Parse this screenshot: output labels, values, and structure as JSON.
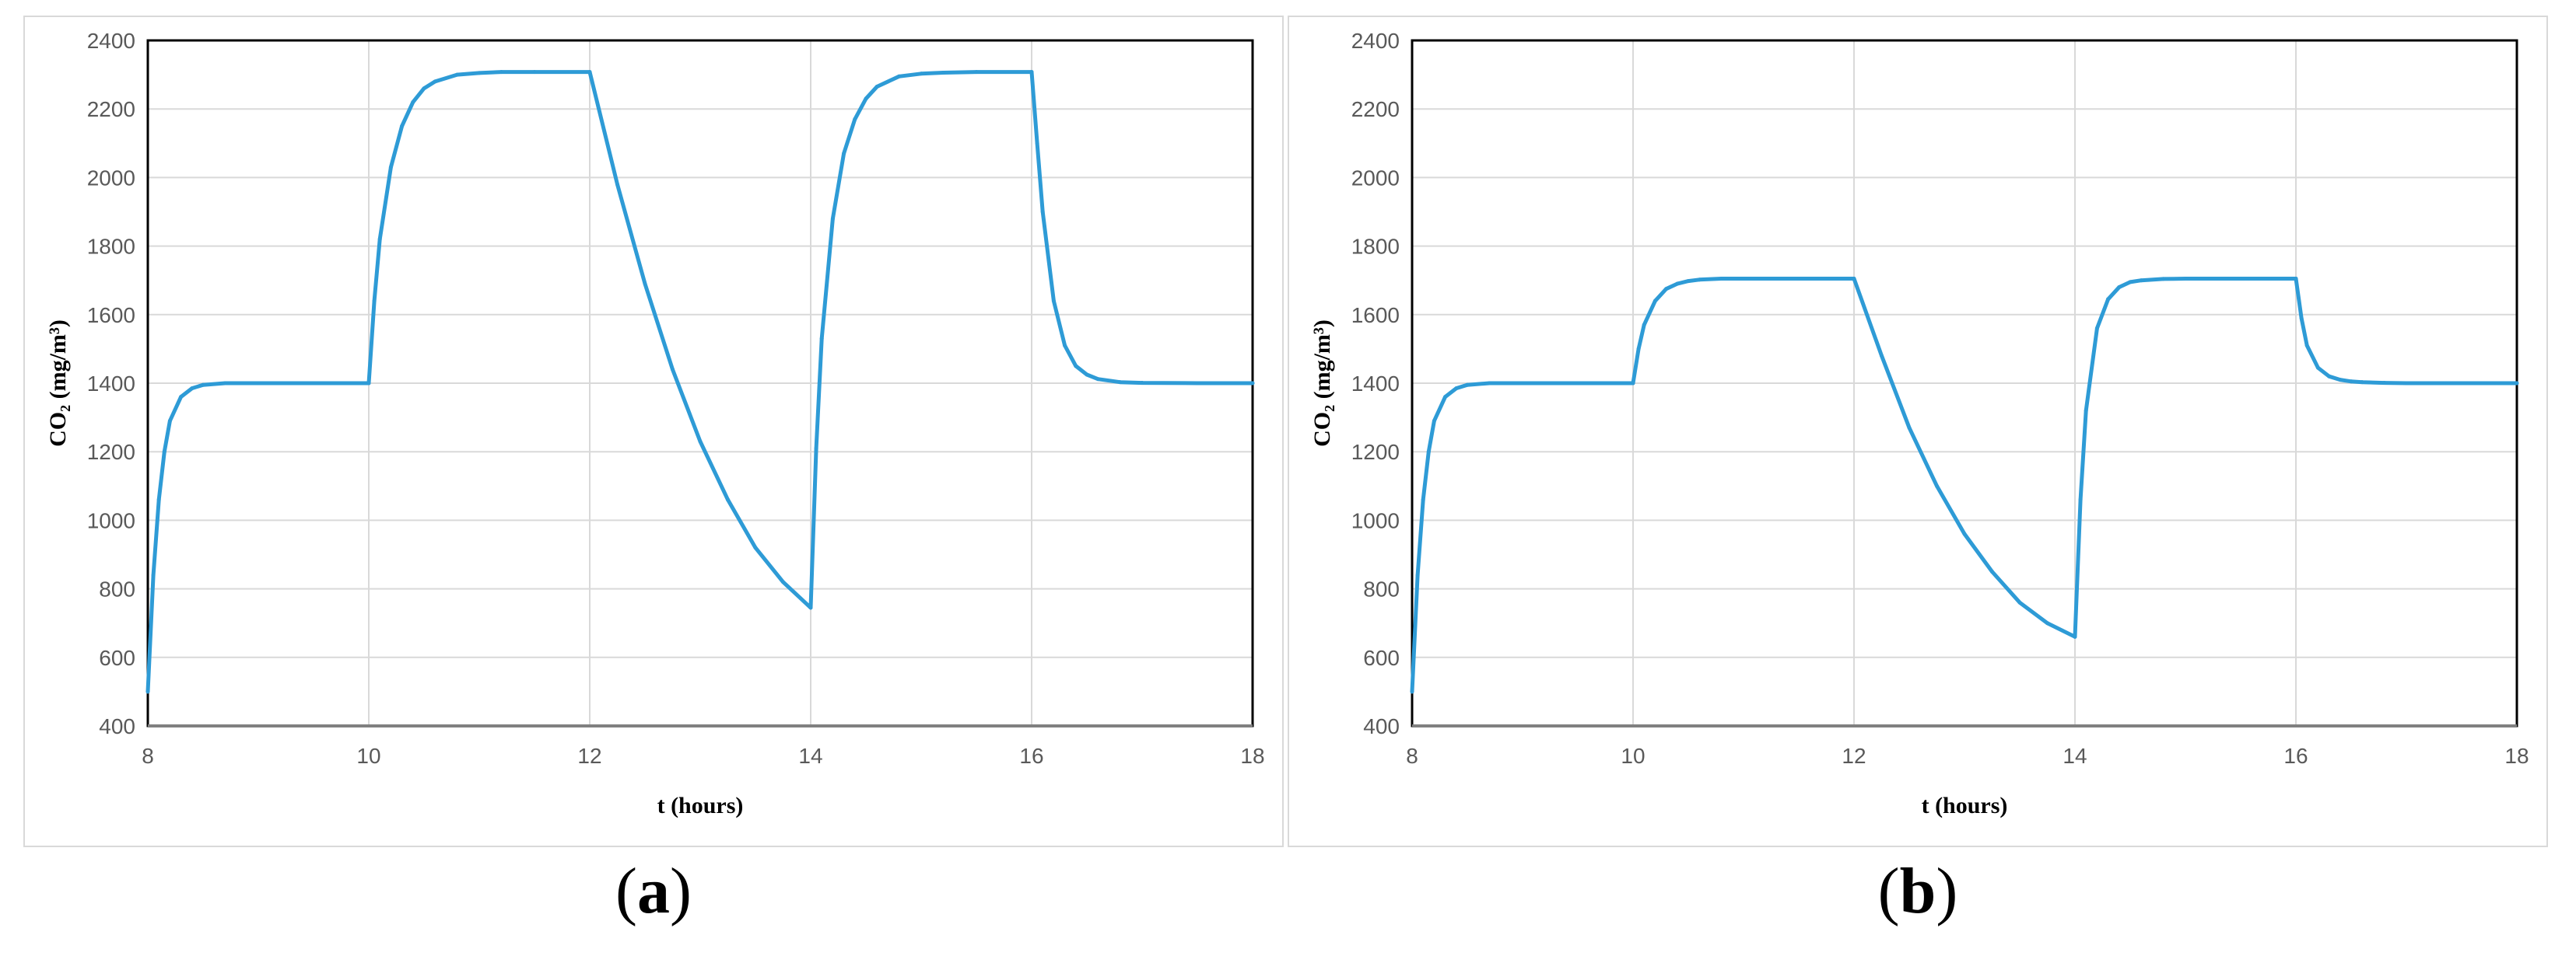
{
  "chart_data": [
    {
      "type": "line",
      "panel_label": "a",
      "xlabel": "t (hours)",
      "ylabel": "CO₂ (mg/m³)",
      "xlim": [
        8,
        18
      ],
      "ylim": [
        400,
        2400
      ],
      "xticks": [
        8,
        10,
        12,
        14,
        16,
        18
      ],
      "yticks": [
        400,
        600,
        800,
        1000,
        1200,
        1400,
        1600,
        1800,
        2000,
        2200,
        2400
      ],
      "grid": true,
      "line_color": "#2e9bd6",
      "series": [
        {
          "x": [
            8.0,
            8.05,
            8.1,
            8.15,
            8.2,
            8.3,
            8.4,
            8.5,
            8.7,
            9.0,
            10.0,
            10.05,
            10.1,
            10.2,
            10.3,
            10.4,
            10.5,
            10.6,
            10.8,
            11.0,
            11.2,
            11.5,
            12.0,
            12.25,
            12.5,
            12.75,
            13.0,
            13.25,
            13.5,
            13.75,
            14.0,
            14.05,
            14.1,
            14.2,
            14.3,
            14.4,
            14.5,
            14.6,
            14.8,
            15.0,
            15.2,
            15.5,
            16.0,
            16.05,
            16.1,
            16.2,
            16.3,
            16.4,
            16.5,
            16.6,
            16.8,
            17.0,
            17.5,
            18.0
          ],
          "y": [
            500,
            840,
            1060,
            1200,
            1290,
            1360,
            1385,
            1395,
            1400,
            1400,
            1400,
            1640,
            1820,
            2030,
            2150,
            2220,
            2260,
            2280,
            2300,
            2305,
            2308,
            2308,
            2308,
            1980,
            1690,
            1440,
            1230,
            1060,
            920,
            820,
            745,
            1210,
            1530,
            1880,
            2070,
            2170,
            2230,
            2265,
            2295,
            2303,
            2306,
            2308,
            2308,
            2100,
            1900,
            1640,
            1510,
            1450,
            1425,
            1412,
            1403,
            1401,
            1400,
            1400
          ]
        }
      ]
    },
    {
      "type": "line",
      "panel_label": "b",
      "xlabel": "t (hours)",
      "ylabel": "CO₂ (mg/m³)",
      "xlim": [
        8,
        18
      ],
      "ylim": [
        400,
        2400
      ],
      "xticks": [
        8,
        10,
        12,
        14,
        16,
        18
      ],
      "yticks": [
        400,
        600,
        800,
        1000,
        1200,
        1400,
        1600,
        1800,
        2000,
        2200,
        2400
      ],
      "grid": true,
      "line_color": "#2e9bd6",
      "series": [
        {
          "x": [
            8.0,
            8.05,
            8.1,
            8.15,
            8.2,
            8.3,
            8.4,
            8.5,
            8.7,
            9.0,
            10.0,
            10.05,
            10.1,
            10.2,
            10.3,
            10.4,
            10.5,
            10.6,
            10.8,
            11.0,
            11.5,
            12.0,
            12.25,
            12.5,
            12.75,
            13.0,
            13.25,
            13.5,
            13.75,
            14.0,
            14.05,
            14.1,
            14.2,
            14.3,
            14.4,
            14.5,
            14.6,
            14.8,
            15.0,
            15.5,
            16.0,
            16.05,
            16.1,
            16.2,
            16.3,
            16.4,
            16.5,
            16.6,
            16.8,
            17.0,
            17.5,
            18.0
          ],
          "y": [
            500,
            840,
            1060,
            1200,
            1290,
            1360,
            1385,
            1395,
            1400,
            1400,
            1400,
            1500,
            1570,
            1640,
            1675,
            1690,
            1698,
            1702,
            1705,
            1705,
            1705,
            1705,
            1480,
            1270,
            1100,
            960,
            850,
            760,
            700,
            660,
            1060,
            1320,
            1560,
            1645,
            1680,
            1695,
            1700,
            1704,
            1705,
            1705,
            1705,
            1590,
            1510,
            1445,
            1420,
            1410,
            1405,
            1403,
            1401,
            1400,
            1400,
            1400
          ]
        }
      ]
    }
  ]
}
